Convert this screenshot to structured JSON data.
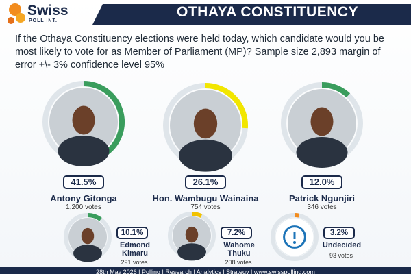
{
  "header": {
    "logo_name": "Swiss",
    "logo_tagline": "POLL INT.",
    "title": "OTHAYA CONSTITUENCY"
  },
  "question": "If the Othaya Constituency elections were held today, which candidate would you be most likely to vote for as Member of Parliament (MP)? Sample size 2,893 margin of error +\\- 3% confidence level 95%",
  "candidates": [
    {
      "name": "Antony Gitonga",
      "share": 41.5,
      "share_label": "41.5%",
      "votes": "1,200 votes",
      "color": "#3a9d5d"
    },
    {
      "name": "Hon. Wambugu Wainaina",
      "share": 26.1,
      "share_label": "26.1%",
      "votes": "754 votes",
      "color": "#f2e600"
    },
    {
      "name": "Patrick Ngunjiri",
      "share": 12.0,
      "share_label": "12.0%",
      "votes": "346 votes",
      "color": "#3a9d5d"
    },
    {
      "name": "Edmond Kimaru",
      "share": 10.1,
      "share_label": "10.1%",
      "votes": "291 votes",
      "color": "#3a9d5d"
    },
    {
      "name": "Wahome Thuku",
      "share": 7.2,
      "share_label": "7.2%",
      "votes": "208 votes",
      "color": "#f2c200"
    },
    {
      "name": "Undecided",
      "share": 3.2,
      "share_label": "3.2%",
      "votes": "93 votes",
      "color": "#f28c1e"
    }
  ],
  "footer": "28th May 2026 | Polling | Research | Analytics | Strategy | www.swisspolling.com"
}
